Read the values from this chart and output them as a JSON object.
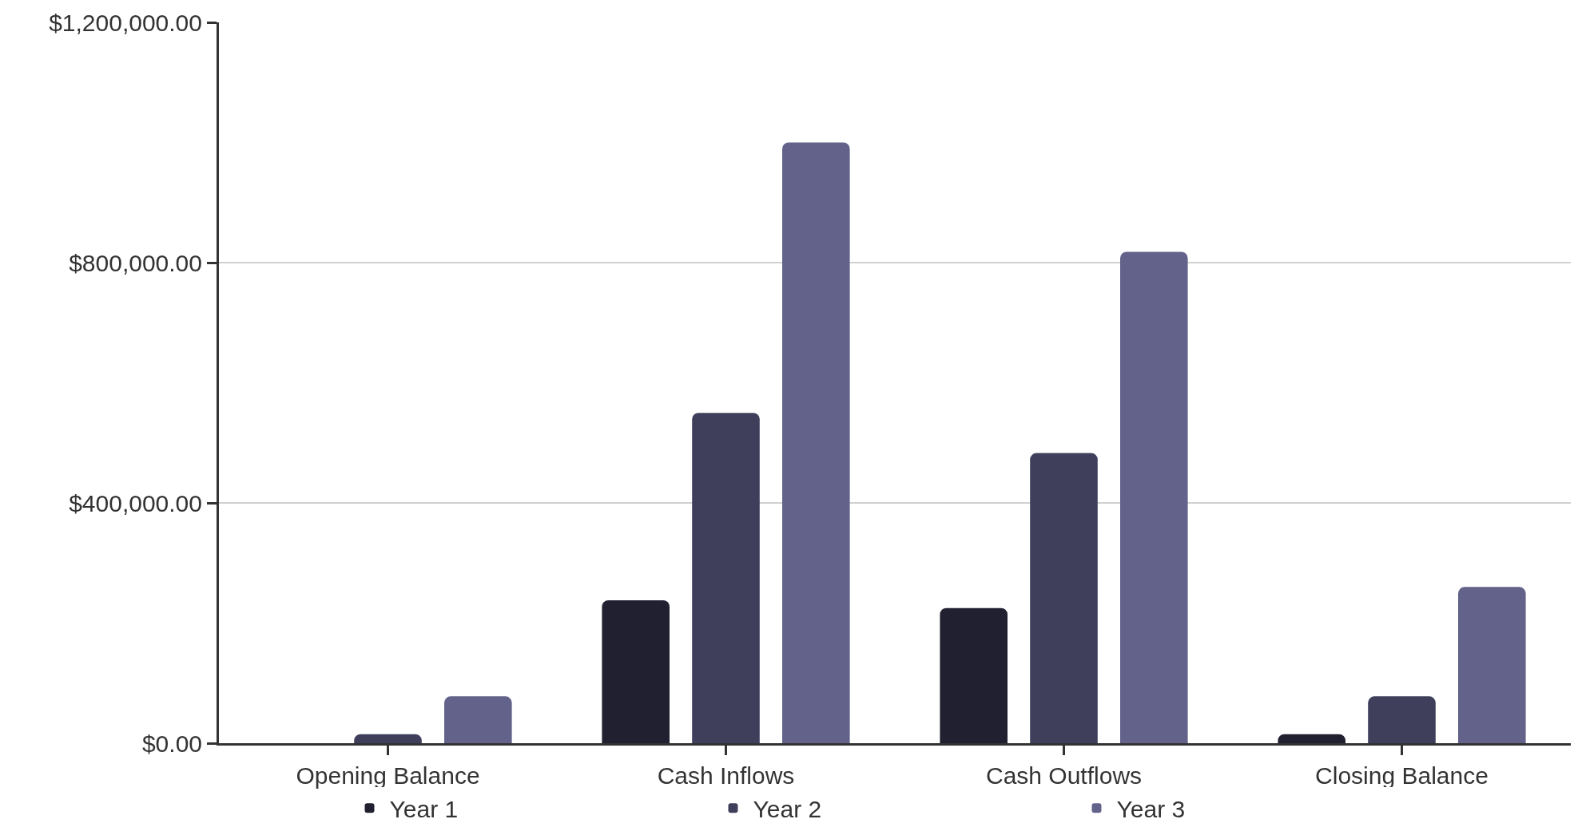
{
  "chart_data": {
    "type": "bar",
    "categories": [
      "Opening Balance",
      "Cash Inflows",
      "Cash Outflows",
      "Closing Balance"
    ],
    "series": [
      {
        "name": "Year 1",
        "color": "#202030",
        "values": [
          0,
          238000,
          225000,
          15000
        ]
      },
      {
        "name": "Year 2",
        "color": "#3f3f5c",
        "values": [
          15000,
          550000,
          483000,
          78000
        ]
      },
      {
        "name": "Year 3",
        "color": "#62628a",
        "values": [
          78000,
          1000000,
          818000,
          260000
        ]
      }
    ],
    "ylim": [
      0,
      1200000
    ],
    "yticks": [
      {
        "value": 0,
        "label": "$0.00"
      },
      {
        "value": 400000,
        "label": "$400,000.00"
      },
      {
        "value": 800000,
        "label": "$800,000.00"
      },
      {
        "value": 1200000,
        "label": "$1,200,000.00"
      }
    ],
    "grid": "y",
    "legend": "bottom"
  }
}
